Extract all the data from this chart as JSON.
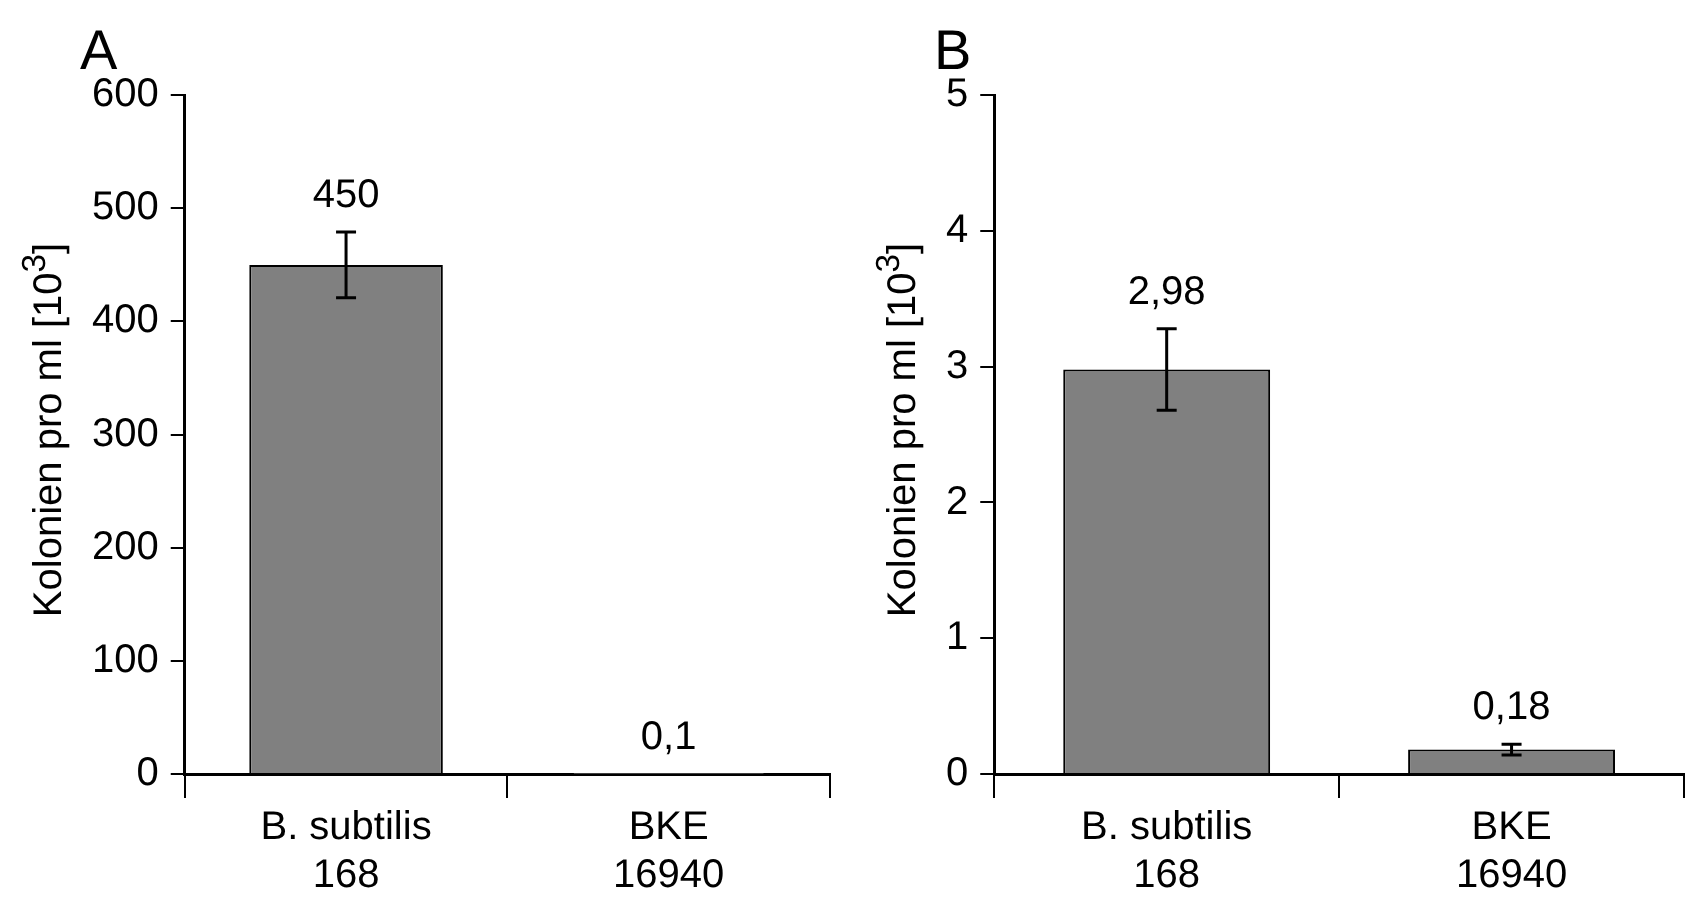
{
  "chart_data": [
    {
      "type": "bar",
      "title": "A",
      "ylabel": "Kolonien pro ml [10$^{3}$]",
      "categories": [
        "B. subtilis 168",
        "BKE 16940"
      ],
      "values": [
        450,
        0.1
      ],
      "errors": [
        29,
        null
      ],
      "value_labels": [
        "450",
        "0,1"
      ],
      "color": "#808080",
      "ylim": [
        0,
        600
      ],
      "yticks": [
        0,
        100,
        200,
        300,
        400,
        500,
        600
      ],
      "grid": false,
      "legend": false
    },
    {
      "type": "bar",
      "title": "B",
      "ylabel": "Kolonien pro ml [10$^{3}$]",
      "categories": [
        "B. subtilis 168",
        "BKE 16940"
      ],
      "values": [
        2.98,
        0.18
      ],
      "errors": [
        0.3,
        0.04
      ],
      "value_labels": [
        "2,98",
        "0,18"
      ],
      "color": "#808080",
      "ylim": [
        0,
        5
      ],
      "yticks": [
        0,
        1,
        2,
        3,
        4,
        5
      ],
      "grid": false,
      "legend": false
    }
  ]
}
